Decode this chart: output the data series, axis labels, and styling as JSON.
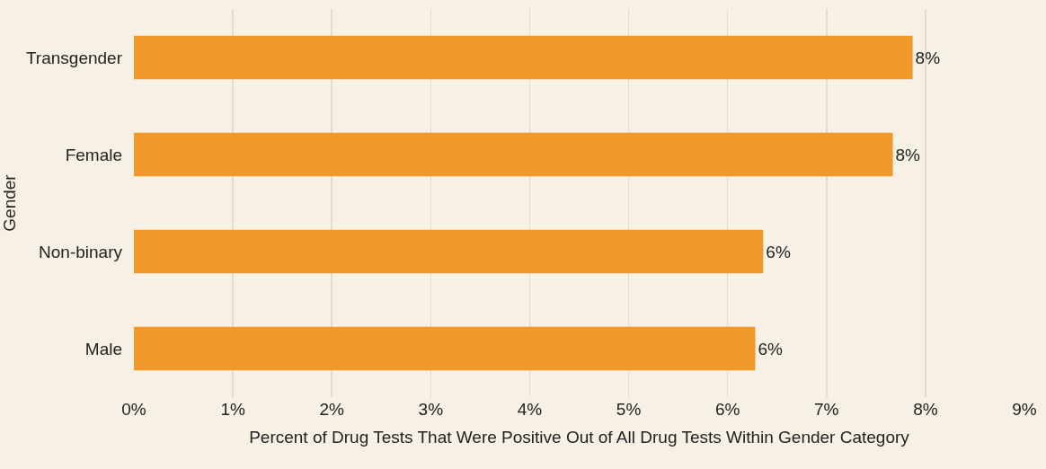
{
  "chart_data": {
    "type": "bar",
    "orientation": "horizontal",
    "xlabel": "Percent of Drug Tests That Were Positive Out of All Drug Tests Within Gender Category",
    "ylabel": "Gender",
    "categories": [
      "Transgender",
      "Female",
      "Non-binary",
      "Male"
    ],
    "values": [
      7.87,
      7.67,
      6.36,
      6.28
    ],
    "value_labels": [
      "8%",
      "8%",
      "6%",
      "6%"
    ],
    "color": "#f0982a",
    "xlim": [
      0,
      9
    ],
    "xticks": [
      {
        "value": 0,
        "label": "0%"
      },
      {
        "value": 1,
        "label": "1%"
      },
      {
        "value": 2,
        "label": "2%"
      },
      {
        "value": 3,
        "label": "3%"
      },
      {
        "value": 4,
        "label": "4%"
      },
      {
        "value": 5,
        "label": "5%"
      },
      {
        "value": 6,
        "label": "6%"
      },
      {
        "value": 7,
        "label": "7%"
      },
      {
        "value": 8,
        "label": "8%"
      },
      {
        "value": 9,
        "label": "9%"
      }
    ],
    "grid": "x",
    "legend": false
  }
}
